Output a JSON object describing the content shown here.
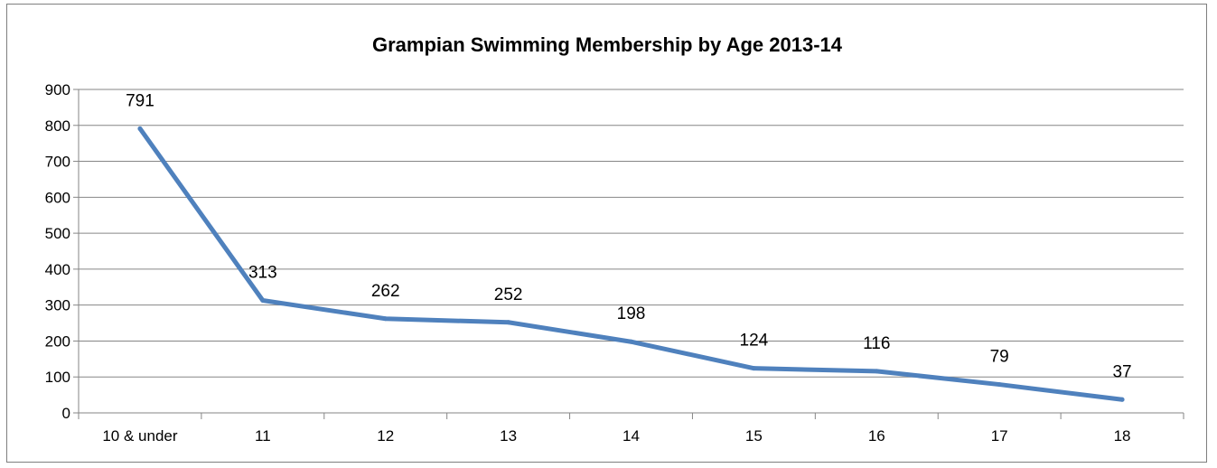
{
  "chart_data": {
    "type": "line",
    "title": "Grampian Swimming Membership by Age 2013-14",
    "xlabel": "",
    "ylabel": "",
    "categories": [
      "10 & under",
      "11",
      "12",
      "13",
      "14",
      "15",
      "16",
      "17",
      "18"
    ],
    "series": [
      {
        "values": [
          791,
          313,
          262,
          252,
          198,
          124,
          116,
          79,
          37
        ]
      }
    ],
    "ylim": [
      0,
      900
    ],
    "yticks": [
      "0",
      "100",
      "200",
      "300",
      "400",
      "500",
      "600",
      "700",
      "800",
      "900"
    ],
    "grid": true,
    "legend": "none",
    "line_color": "#4f81bd",
    "grid_color": "#868686"
  }
}
